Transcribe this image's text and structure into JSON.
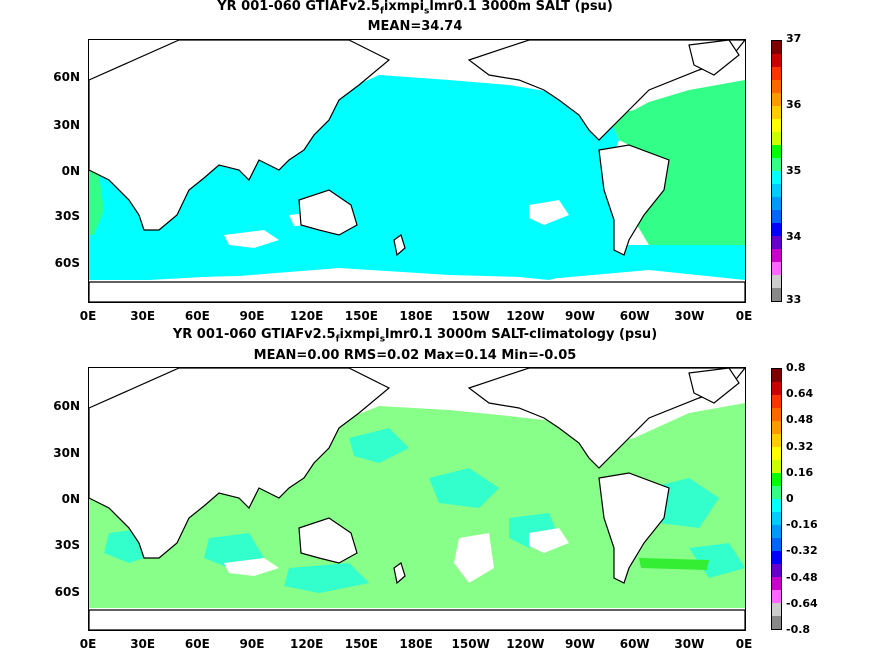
{
  "top": {
    "title_prefix": "YR 001-060 GTIAFv2.5",
    "title_sub1": "f",
    "title_mid": "ixmpi",
    "title_sub2": "s",
    "title_suffix": "lmr0.1 3000m SALT (psu)",
    "subtitle": "MEAN=34.74",
    "colorbar_labels": [
      "37",
      "36",
      "35",
      "34",
      "33"
    ]
  },
  "bottom": {
    "title_prefix": "YR 001-060 GTIAFv2.5",
    "title_sub1": "f",
    "title_mid": "ixmpi",
    "title_sub2": "s",
    "title_suffix": "lmr0.1 3000m SALT-climatology (psu)",
    "subtitle": "MEAN=0.00   RMS=0.02   Max=0.14   Min=-0.05",
    "colorbar_labels": [
      "0.8",
      "0.64",
      "0.48",
      "0.32",
      "0.16",
      "0",
      "-0.16",
      "-0.32",
      "-0.48",
      "-0.64",
      "-0.8"
    ]
  },
  "y_ticks": [
    "60N",
    "30N",
    "0N",
    "30S",
    "60S"
  ],
  "x_ticks": [
    "0E",
    "30E",
    "60E",
    "90E",
    "120E",
    "150E",
    "180E",
    "150W",
    "120W",
    "90W",
    "60W",
    "30W",
    "0E"
  ],
  "colors": {
    "ocean_top": "#00ffff",
    "ocean_top_atlantic": "#33ff88",
    "ocean_bottom_green": "#88ff88",
    "ocean_bottom_cyan": "#33ffcc",
    "land": "#ffffff"
  },
  "colorbar_colors": [
    "#7f0000",
    "#cc0000",
    "#ff3300",
    "#ff6600",
    "#ff9900",
    "#ffcc00",
    "#ffff00",
    "#ccff00",
    "#00ff00",
    "#33ff88",
    "#00ffff",
    "#00ccff",
    "#0099ff",
    "#0066ff",
    "#0000ff",
    "#6600cc",
    "#cc00cc",
    "#ff66ff",
    "#cccccc",
    "#888888"
  ]
}
